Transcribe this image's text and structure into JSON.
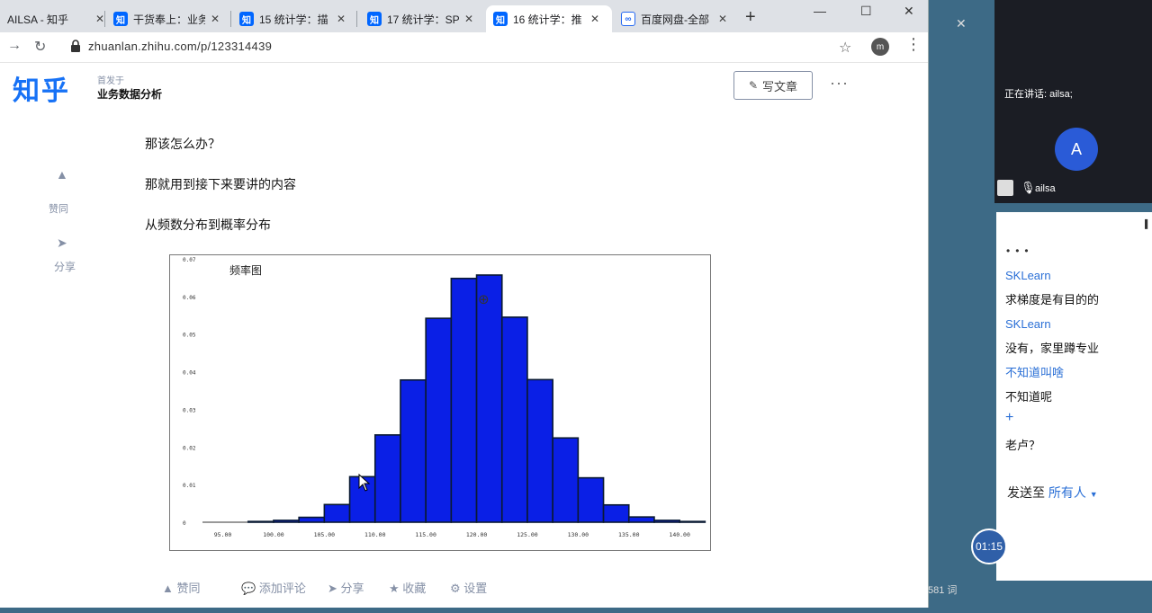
{
  "browser": {
    "tabs": [
      {
        "label": "AILSA - 知乎",
        "favicon": "zhihu-icon",
        "active": false
      },
      {
        "label": "干货奉上：业务",
        "favicon": "zhihu-icon",
        "active": false
      },
      {
        "label": "15 统计学：描",
        "favicon": "zhihu-icon",
        "active": false
      },
      {
        "label": "17 统计学：SP",
        "favicon": "zhihu-icon",
        "active": false
      },
      {
        "label": "16 统计学：推",
        "favicon": "zhihu-icon",
        "active": true
      },
      {
        "label": "百度网盘-全部",
        "favicon": "baidu-icon",
        "active": false
      }
    ],
    "favicon_text": "知",
    "new_tab": "+",
    "url": "zhuanlan.zhihu.com/p/123314439",
    "profile_initial": "m"
  },
  "page": {
    "logo": "知乎",
    "column_first_line": "首发于",
    "column_name": "业务数据分析",
    "write_button": "写文章",
    "more": "···",
    "side_up_label": "赞同",
    "side_share_label": "分享",
    "paragraphs": [
      "那该怎么办？",
      "那就用到接下来要讲的内容",
      "从频数分布到概率分布"
    ],
    "actions": {
      "comment": "添加评论",
      "share": "分享",
      "favorite": "收藏",
      "settings": "设置"
    },
    "word_count": "581 词"
  },
  "chart_data": {
    "type": "bar",
    "title": "频率图",
    "xlabel": "",
    "ylabel": "",
    "x_ticks": [
      "95.00",
      "100.00",
      "105.00",
      "110.00",
      "115.00",
      "120.00",
      "125.00",
      "130.00",
      "135.00",
      "140.00"
    ],
    "y_ticks": [
      "0",
      "0.01",
      "0.02",
      "0.03",
      "0.04",
      "0.05",
      "0.06",
      "0.07"
    ],
    "xlim": [
      93,
      143
    ],
    "ylim": [
      0,
      0.07
    ],
    "bin_width": 2.5,
    "bins_start": [
      97.5,
      100,
      102.5,
      105,
      107.5,
      110,
      112.5,
      115,
      117.5,
      120,
      122.5,
      125,
      127.5,
      130,
      132.5,
      135,
      137.5,
      140
    ],
    "values": [
      0.0002,
      0.0005,
      0.0013,
      0.0047,
      0.0121,
      0.0232,
      0.0378,
      0.0542,
      0.0648,
      0.0657,
      0.0545,
      0.0379,
      0.0224,
      0.0118,
      0.0046,
      0.0014,
      0.0005,
      0.0002
    ],
    "bar_color": "#0a1fe6",
    "edge_color": "#0a1a33"
  },
  "meeting": {
    "speaking": "正在讲话: ailsa;",
    "avatar_initial": "A",
    "user_name": "ailsa",
    "chat": [
      {
        "sender": "SKLearn",
        "message": "求梯度是有目的的"
      },
      {
        "sender": "SKLearn",
        "message": "没有，家里蹲专业"
      },
      {
        "sender": "不知道叫啥",
        "message": "不知道呢"
      }
    ],
    "last_message": "老卢？",
    "send_to_label": "发送至",
    "send_to_target": "所有人",
    "timer": "01:15"
  }
}
